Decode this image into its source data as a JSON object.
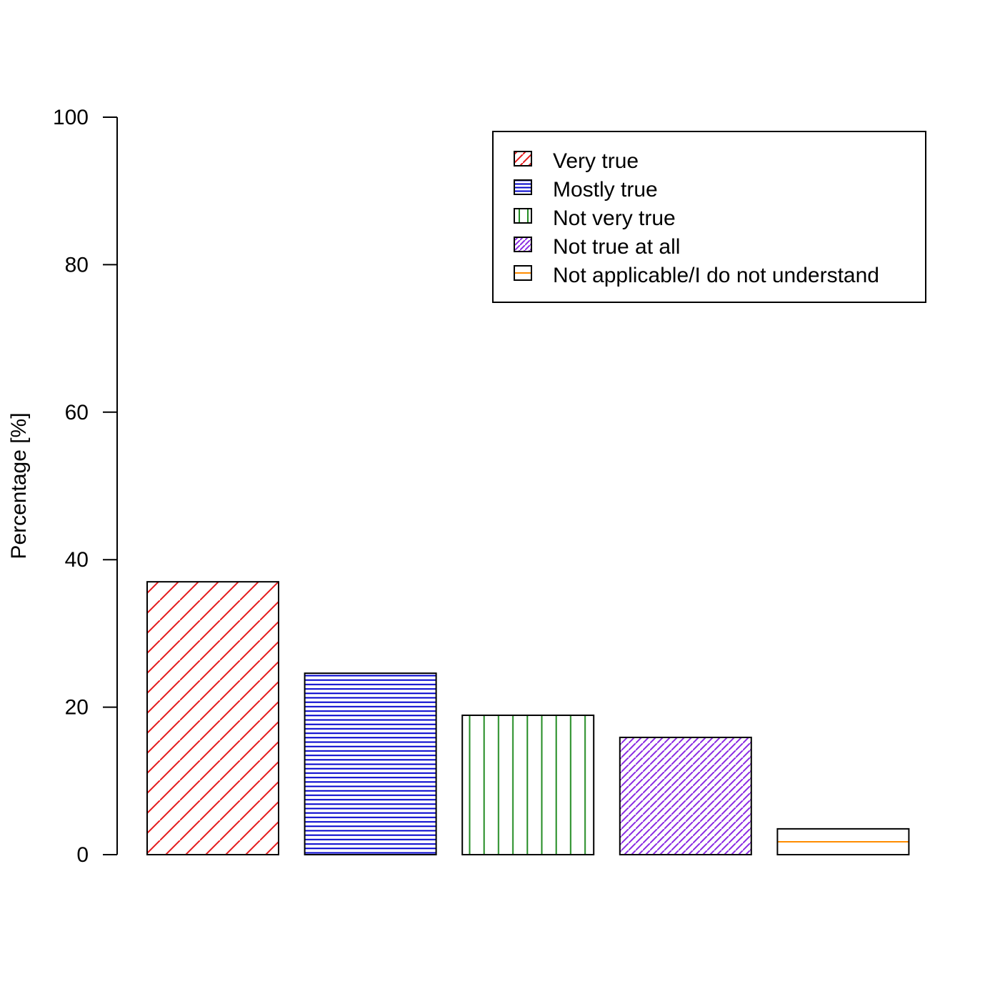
{
  "chart_data": {
    "type": "bar",
    "title": "",
    "xlabel": "",
    "ylabel": "Percentage [%]",
    "ylim": [
      0,
      100
    ],
    "yticks": [
      0,
      20,
      40,
      60,
      80,
      100
    ],
    "grid": false,
    "legend_placement": "top-right",
    "categories": [
      "Very true",
      "Mostly true",
      "Not very true",
      "Not true at all",
      "Not applicable/I do not understand"
    ],
    "values": [
      37,
      24.6,
      18.9,
      15.9,
      3.5
    ],
    "series_colors": [
      "#e41a1c",
      "#0000cd",
      "#228b22",
      "#8a2be2",
      "#ff8c00"
    ],
    "hatch_patterns": [
      "diagonal",
      "horizontal",
      "vertical",
      "dense-diagonal",
      "single-horizontal"
    ]
  }
}
